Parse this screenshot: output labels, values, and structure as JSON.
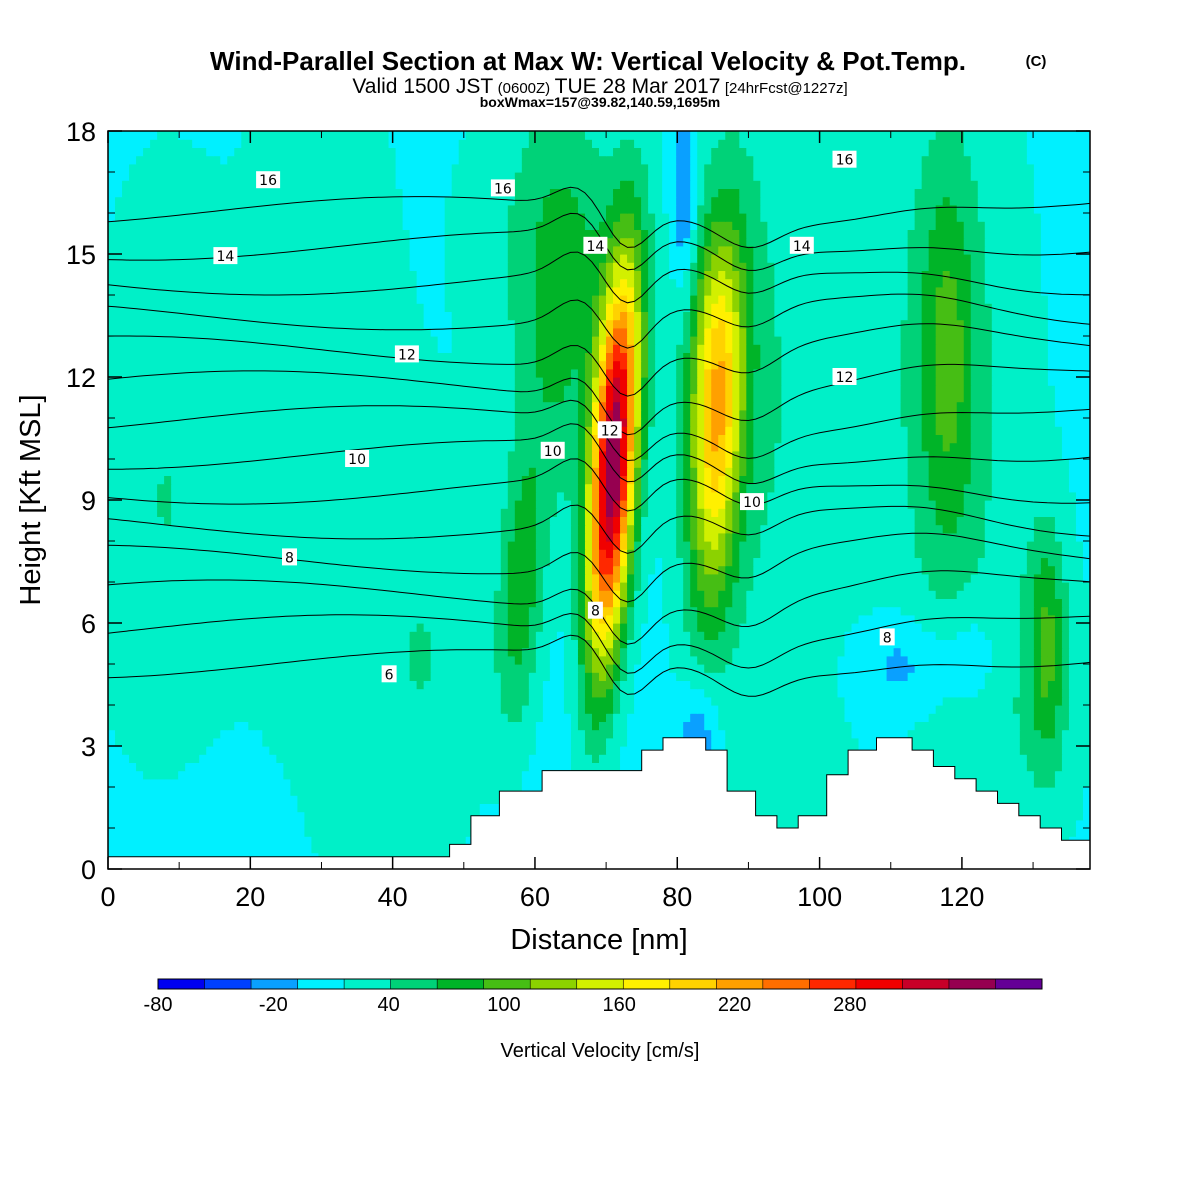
{
  "header": {
    "title_main": "Wind-Parallel Section at Max W: Vertical Velocity & Pot.Temp.",
    "title_copyright": "(C)",
    "subtitle_pre": "Valid 1500 JST",
    "subtitle_zulu": "(0600Z)",
    "subtitle_date": "TUE 28 Mar 2017",
    "subtitle_run": "[24hrFcst@1227z]",
    "box_info": "boxWmax=157@39.82,140.59,1695m"
  },
  "colorbar": {
    "title": "Vertical Velocity [cm/s]",
    "tick_labels": [
      "-80",
      "-20",
      "40",
      "100",
      "160",
      "220",
      "280"
    ],
    "colors": [
      "#0000f0",
      "#0040ff",
      "#0aa0ff",
      "#00f0ff",
      "#00f0c8",
      "#00d278",
      "#00b428",
      "#46be14",
      "#8cd200",
      "#d2f000",
      "#fff000",
      "#ffd200",
      "#ffa000",
      "#ff6e00",
      "#ff2800",
      "#f00000",
      "#c80028",
      "#960050",
      "#640096"
    ]
  },
  "chart_data": {
    "type": "heatmap",
    "xlabel": "Distance [nm]",
    "ylabel": "Height [Kft MSL]",
    "xlim": [
      0,
      138
    ],
    "ylim": [
      0,
      18
    ],
    "x_ticks": [
      "0",
      "20",
      "40",
      "60",
      "80",
      "100",
      "120"
    ],
    "y_ticks": [
      "0",
      "3",
      "6",
      "9",
      "12",
      "15",
      "18"
    ],
    "field": "Vertical Velocity [cm/s]",
    "field_min": -80,
    "field_max": 320,
    "field_step": 20,
    "background_value": -10,
    "updraft_cores": [
      {
        "x": 71,
        "y": 9.8,
        "peak": 270,
        "note": "max W core"
      },
      {
        "x": 85.5,
        "y": 10.5,
        "peak": 110
      },
      {
        "x": 58,
        "y": 6.8,
        "peak": 50
      },
      {
        "x": 118,
        "y": 12.5,
        "peak": 45
      },
      {
        "x": 132,
        "y": 5.5,
        "peak": 45
      },
      {
        "x": 85,
        "y": 12.8,
        "peak": 40
      },
      {
        "x": 64,
        "y": 13.5,
        "peak": 40
      }
    ],
    "downdraft_cores": [
      {
        "x": 81,
        "y": 16.5,
        "peak": -60
      },
      {
        "x": 83,
        "y": 3.0,
        "peak": -55
      },
      {
        "x": 112,
        "y": 5.0,
        "peak": -40
      },
      {
        "x": 122,
        "y": 5.2,
        "peak": -35
      },
      {
        "x": 66,
        "y": 11.3,
        "peak": -20
      },
      {
        "x": 109,
        "y": 11,
        "peak": -15
      }
    ],
    "terrain": {
      "x": [
        0,
        48,
        48,
        51,
        51,
        55,
        55,
        61,
        61,
        75,
        75,
        78,
        78,
        84,
        84,
        87,
        87,
        91,
        91,
        94,
        94,
        97,
        97,
        101,
        101,
        104,
        104,
        108,
        108,
        113,
        113,
        116,
        116,
        119,
        119,
        122,
        122,
        125,
        125,
        128,
        128,
        131,
        131,
        134,
        134,
        138
      ],
      "height": [
        0.3,
        0.3,
        0.6,
        0.6,
        1.3,
        1.3,
        1.9,
        1.9,
        2.4,
        2.4,
        2.9,
        2.9,
        3.2,
        3.2,
        2.9,
        2.9,
        1.9,
        1.9,
        1.3,
        1.3,
        1.0,
        1.0,
        1.3,
        1.3,
        2.3,
        2.3,
        2.9,
        2.9,
        3.2,
        3.2,
        2.9,
        2.9,
        2.5,
        2.5,
        2.2,
        2.2,
        1.9,
        1.9,
        1.6,
        1.6,
        1.3,
        1.3,
        1.0,
        1.0,
        0.7,
        0.7
      ]
    },
    "contours_label": "Potential Temperature",
    "contour_levels": [
      5,
      6,
      7,
      8,
      9,
      10,
      11,
      12,
      13,
      14,
      15,
      16,
      17,
      18
    ],
    "contour_labels": [
      {
        "text": "16",
        "x": 22.5,
        "y": 16.8
      },
      {
        "text": "16",
        "x": 55.5,
        "y": 16.6
      },
      {
        "text": "16",
        "x": 103.5,
        "y": 17.3
      },
      {
        "text": "14",
        "x": 16.5,
        "y": 14.95
      },
      {
        "text": "14",
        "x": 68.5,
        "y": 15.2
      },
      {
        "text": "14",
        "x": 97.5,
        "y": 15.2
      },
      {
        "text": "12",
        "x": 42,
        "y": 12.55
      },
      {
        "text": "12",
        "x": 70.5,
        "y": 10.7
      },
      {
        "text": "12",
        "x": 103.5,
        "y": 12.0
      },
      {
        "text": "10",
        "x": 35,
        "y": 10.0
      },
      {
        "text": "10",
        "x": 62.5,
        "y": 10.2
      },
      {
        "text": "10",
        "x": 90.5,
        "y": 8.95
      },
      {
        "text": "8",
        "x": 25.5,
        "y": 7.6
      },
      {
        "text": "8",
        "x": 68.5,
        "y": 6.3
      },
      {
        "text": "8",
        "x": 109.5,
        "y": 5.65
      },
      {
        "text": "6",
        "x": 39.5,
        "y": 4.75
      }
    ]
  }
}
